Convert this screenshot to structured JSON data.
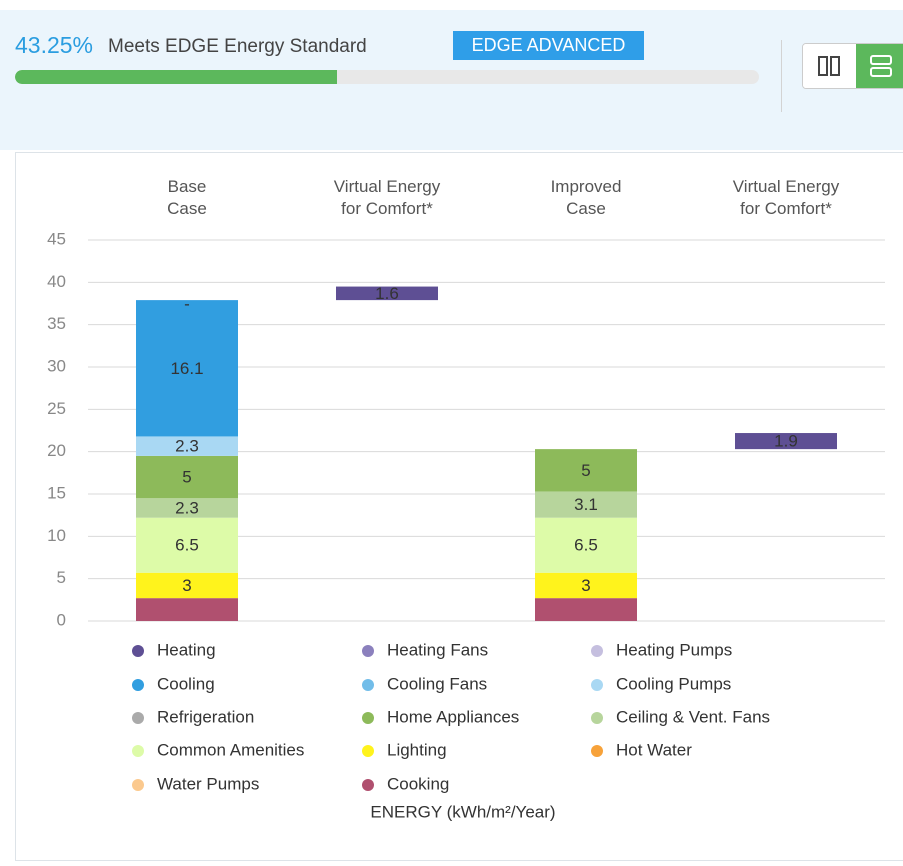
{
  "header": {
    "percent": {
      "value": 43.25,
      "label": "43.25%"
    },
    "status": "Meets EDGE Energy Standard",
    "badge": "EDGE ADVANCED"
  },
  "chart_data": {
    "type": "stacked-bar",
    "categories": [
      "Base\nCase",
      "Virtual Energy\nfor Comfort*",
      "Improved\nCase",
      "Virtual Energy\nfor Comfort*"
    ],
    "ylim": [
      0,
      45
    ],
    "yticks": [
      0,
      5,
      10,
      15,
      20,
      25,
      30,
      35,
      40,
      45
    ],
    "grid": true,
    "x_label": "ENERGY (kWh/m²/Year)",
    "series": [
      {
        "name": "Heating",
        "color": "#5e4f94",
        "values": [
          0,
          1.6,
          null,
          1.9
        ],
        "value_labels": [
          "-",
          null,
          null,
          null
        ]
      },
      {
        "name": "Heating Fans",
        "color": "#8b80bd",
        "values": [
          null,
          null,
          null,
          null
        ]
      },
      {
        "name": "Heating Pumps",
        "color": "#c5bfdf",
        "values": [
          null,
          null,
          null,
          null
        ]
      },
      {
        "name": "Cooling",
        "color": "#319ee0",
        "values": [
          16.1,
          null,
          null,
          null
        ]
      },
      {
        "name": "Cooling Fans",
        "color": "#72bde9",
        "values": [
          null,
          null,
          null,
          null
        ]
      },
      {
        "name": "Cooling Pumps",
        "color": "#a9d8f3",
        "values": [
          2.3,
          null,
          null,
          null
        ]
      },
      {
        "name": "Refrigeration",
        "color": "#aaaaaa",
        "values": [
          null,
          null,
          null,
          null
        ]
      },
      {
        "name": "Home Appliances",
        "color": "#8dba5a",
        "values": [
          5,
          null,
          5,
          null
        ]
      },
      {
        "name": "Ceiling & Vent. Fans",
        "color": "#b7d59c",
        "values": [
          2.3,
          null,
          3.1,
          null
        ]
      },
      {
        "name": "Common Amenities",
        "color": "#ddfba8",
        "values": [
          6.5,
          null,
          6.5,
          null
        ]
      },
      {
        "name": "Lighting",
        "color": "#fff31c",
        "values": [
          3,
          null,
          3,
          null
        ]
      },
      {
        "name": "Hot Water",
        "color": "#f7a23a",
        "values": [
          null,
          null,
          null,
          null
        ]
      },
      {
        "name": "Water Pumps",
        "color": "#fbc98e",
        "values": [
          null,
          null,
          null,
          null
        ]
      },
      {
        "name": "Cooking",
        "color": "#b0506f",
        "values": [
          2.7,
          null,
          2.7,
          null
        ],
        "show_labels": false
      }
    ]
  }
}
